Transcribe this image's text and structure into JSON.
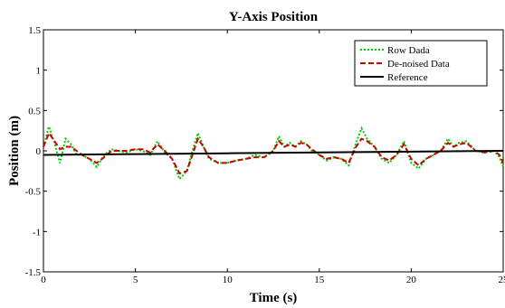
{
  "chart_data": {
    "type": "line",
    "title": "Y-Axis Position",
    "xlabel": "Time (s)",
    "ylabel": "Position (m)",
    "xlim": [
      0,
      25
    ],
    "ylim": [
      -1.5,
      1.5
    ],
    "x_ticks": [
      0,
      5,
      10,
      15,
      20,
      25
    ],
    "y_ticks": [
      -1.5,
      -1,
      -0.5,
      0,
      0.5,
      1,
      1.5
    ],
    "x_tick_labels": [
      "0",
      "5",
      "10",
      "15",
      "20",
      "25"
    ],
    "y_tick_labels": [
      "-1.5",
      "-1",
      "-0.5",
      "0",
      "0.5",
      "1",
      "1.5"
    ],
    "grid": false,
    "legend_position": "top-right",
    "series": [
      {
        "name": "Row Dada",
        "color": "#00cc00",
        "style": "dotted",
        "x": [
          0,
          0.3,
          0.6,
          0.9,
          1.2,
          1.5,
          1.8,
          2.1,
          2.5,
          2.9,
          3.3,
          3.7,
          4.1,
          4.5,
          5.0,
          5.4,
          5.8,
          6.2,
          6.6,
          7.0,
          7.4,
          7.8,
          8.1,
          8.4,
          8.7,
          9.0,
          9.5,
          10.0,
          10.5,
          11.0,
          11.5,
          12.0,
          12.5,
          12.8,
          13.1,
          13.4,
          13.7,
          14.0,
          14.3,
          14.6,
          15.0,
          15.4,
          15.8,
          16.2,
          16.6,
          17.0,
          17.3,
          17.6,
          18.0,
          18.4,
          18.8,
          19.2,
          19.6,
          20.0,
          20.4,
          20.8,
          21.2,
          21.6,
          22.0,
          22.3,
          22.6,
          23.0,
          23.5,
          24.0,
          24.5,
          24.8,
          25.0
        ],
        "y": [
          0.05,
          0.3,
          0.1,
          -0.15,
          0.15,
          0.08,
          -0.05,
          -0.05,
          -0.1,
          -0.2,
          -0.05,
          0.02,
          0.0,
          -0.02,
          0.02,
          0.0,
          -0.05,
          0.12,
          -0.02,
          -0.1,
          -0.35,
          -0.25,
          0.0,
          0.22,
          0.05,
          -0.1,
          -0.15,
          -0.15,
          -0.12,
          -0.1,
          -0.05,
          -0.08,
          0.0,
          0.18,
          0.05,
          0.1,
          0.05,
          0.12,
          0.08,
          0.0,
          -0.05,
          -0.12,
          -0.08,
          -0.1,
          -0.18,
          0.1,
          0.28,
          0.15,
          0.05,
          -0.1,
          -0.15,
          -0.05,
          0.12,
          -0.15,
          -0.22,
          -0.1,
          -0.05,
          0.0,
          0.15,
          0.05,
          0.1,
          0.12,
          0.0,
          -0.02,
          0.0,
          -0.08,
          -0.2
        ]
      },
      {
        "name": "De-noised Data",
        "color": "#cc0000",
        "style": "dashed",
        "x": [
          0,
          0.3,
          0.6,
          0.9,
          1.2,
          1.5,
          1.8,
          2.1,
          2.5,
          2.9,
          3.3,
          3.7,
          4.1,
          4.5,
          5.0,
          5.4,
          5.8,
          6.2,
          6.6,
          7.0,
          7.4,
          7.8,
          8.1,
          8.4,
          8.7,
          9.0,
          9.5,
          10.0,
          10.5,
          11.0,
          11.5,
          12.0,
          12.5,
          12.8,
          13.1,
          13.4,
          13.7,
          14.0,
          14.3,
          14.6,
          15.0,
          15.4,
          15.8,
          16.2,
          16.6,
          17.0,
          17.3,
          17.6,
          18.0,
          18.4,
          18.8,
          19.2,
          19.6,
          20.0,
          20.4,
          20.8,
          21.2,
          21.6,
          22.0,
          22.3,
          22.6,
          23.0,
          23.5,
          24.0,
          24.5,
          24.8,
          25.0
        ],
        "y": [
          0.05,
          0.22,
          0.12,
          0.02,
          0.05,
          0.05,
          0.0,
          -0.05,
          -0.1,
          -0.15,
          -0.08,
          0.0,
          0.0,
          0.0,
          0.02,
          0.02,
          -0.02,
          0.08,
          0.0,
          -0.1,
          -0.28,
          -0.25,
          -0.05,
          0.15,
          0.05,
          -0.08,
          -0.15,
          -0.15,
          -0.12,
          -0.1,
          -0.08,
          -0.08,
          0.0,
          0.12,
          0.05,
          0.08,
          0.05,
          0.1,
          0.08,
          0.02,
          -0.05,
          -0.1,
          -0.08,
          -0.1,
          -0.15,
          0.05,
          0.15,
          0.12,
          0.05,
          -0.08,
          -0.12,
          -0.05,
          0.08,
          -0.1,
          -0.18,
          -0.1,
          -0.05,
          0.0,
          0.1,
          0.05,
          0.08,
          0.1,
          0.0,
          -0.02,
          0.0,
          -0.05,
          -0.15
        ]
      },
      {
        "name": "Reference",
        "color": "#000000",
        "style": "solid",
        "x": [
          0,
          5,
          10,
          15,
          20,
          25
        ],
        "y": [
          -0.05,
          -0.04,
          -0.03,
          -0.02,
          -0.01,
          0.0
        ]
      }
    ]
  }
}
